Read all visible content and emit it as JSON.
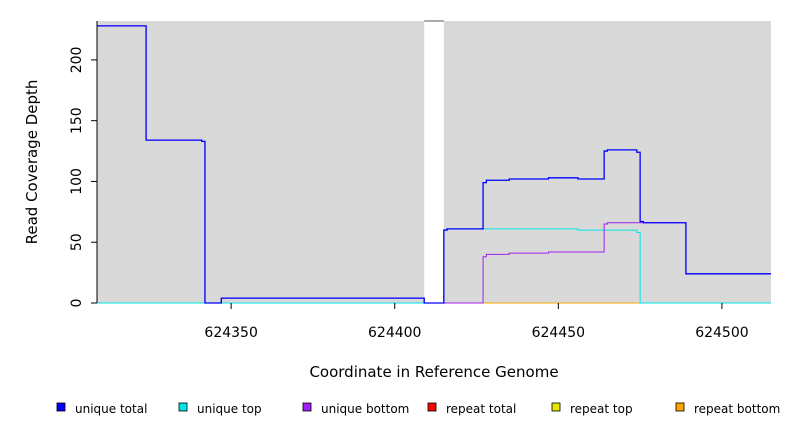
{
  "chart_data": {
    "type": "line",
    "xlabel": "Coordinate in Reference Genome",
    "ylabel": "Read Coverage Depth",
    "xlim": [
      624309,
      624515
    ],
    "ylim": [
      0,
      232
    ],
    "x_ticks": [
      624350,
      624400,
      624450,
      624500
    ],
    "y_ticks": [
      0,
      50,
      100,
      150,
      200
    ],
    "x_tick_labels": [
      "624350",
      "624400",
      "624450",
      "624500"
    ],
    "y_tick_labels": [
      "0",
      "50",
      "100",
      "150",
      "200"
    ],
    "shaded_regions": [
      {
        "start": 624309,
        "end": 624409,
        "color": "#d9d9d9"
      },
      {
        "start": 624415,
        "end": 624515,
        "color": "#d9d9d9"
      }
    ],
    "legend_position": "bottom",
    "series": [
      {
        "name": "unique total",
        "color": "#0000ff",
        "points": [
          [
            624309,
            228
          ],
          [
            624324,
            228
          ],
          [
            624324,
            134
          ],
          [
            624341,
            134
          ],
          [
            624341,
            133
          ],
          [
            624342,
            133
          ],
          [
            624342,
            0
          ],
          [
            624347,
            0
          ],
          [
            624347,
            4
          ],
          [
            624409,
            4
          ],
          [
            624409,
            0
          ],
          [
            624415,
            0
          ],
          [
            624415,
            60
          ],
          [
            624416,
            60
          ],
          [
            624416,
            61
          ],
          [
            624427,
            61
          ],
          [
            624427,
            99
          ],
          [
            624428,
            99
          ],
          [
            624428,
            101
          ],
          [
            624435,
            101
          ],
          [
            624435,
            102
          ],
          [
            624447,
            102
          ],
          [
            624447,
            103
          ],
          [
            624456,
            103
          ],
          [
            624456,
            102
          ],
          [
            624464,
            102
          ],
          [
            624464,
            125
          ],
          [
            624465,
            125
          ],
          [
            624465,
            126
          ],
          [
            624474,
            126
          ],
          [
            624474,
            124
          ],
          [
            624475,
            124
          ],
          [
            624475,
            67
          ],
          [
            624476,
            67
          ],
          [
            624476,
            66
          ],
          [
            624489,
            66
          ],
          [
            624489,
            24
          ],
          [
            624515,
            24
          ]
        ]
      },
      {
        "name": "unique top",
        "color": "#00e5e5",
        "points": [
          [
            624309,
            0
          ],
          [
            624415,
            0
          ],
          [
            624415,
            60
          ],
          [
            624416,
            60
          ],
          [
            624416,
            61
          ],
          [
            624456,
            61
          ],
          [
            624456,
            60
          ],
          [
            624474,
            60
          ],
          [
            624474,
            58
          ],
          [
            624475,
            58
          ],
          [
            624475,
            0
          ],
          [
            624515,
            0
          ]
        ]
      },
      {
        "name": "unique bottom",
        "color": "#a020f0",
        "points": [
          [
            624309,
            228
          ],
          [
            624324,
            228
          ],
          [
            624324,
            134
          ],
          [
            624341,
            134
          ],
          [
            624341,
            133
          ],
          [
            624342,
            133
          ],
          [
            624342,
            0
          ],
          [
            624347,
            0
          ],
          [
            624347,
            4
          ],
          [
            624409,
            4
          ],
          [
            624409,
            0
          ],
          [
            624427,
            0
          ],
          [
            624427,
            38
          ],
          [
            624428,
            38
          ],
          [
            624428,
            40
          ],
          [
            624435,
            40
          ],
          [
            624435,
            41
          ],
          [
            624447,
            41
          ],
          [
            624447,
            42
          ],
          [
            624464,
            42
          ],
          [
            624464,
            65
          ],
          [
            624465,
            65
          ],
          [
            624465,
            66
          ],
          [
            624476,
            66
          ],
          [
            624489,
            66
          ],
          [
            624489,
            24
          ],
          [
            624515,
            24
          ]
        ]
      },
      {
        "name": "repeat total",
        "color": "#ff0000",
        "points": [
          [
            624309,
            0
          ],
          [
            624515,
            0
          ]
        ]
      },
      {
        "name": "repeat top",
        "color": "#e5e500",
        "points": [
          [
            624309,
            0
          ],
          [
            624515,
            0
          ]
        ]
      },
      {
        "name": "repeat bottom",
        "color": "#ffa500",
        "points": [
          [
            624309,
            0
          ],
          [
            624515,
            0
          ]
        ]
      }
    ]
  }
}
